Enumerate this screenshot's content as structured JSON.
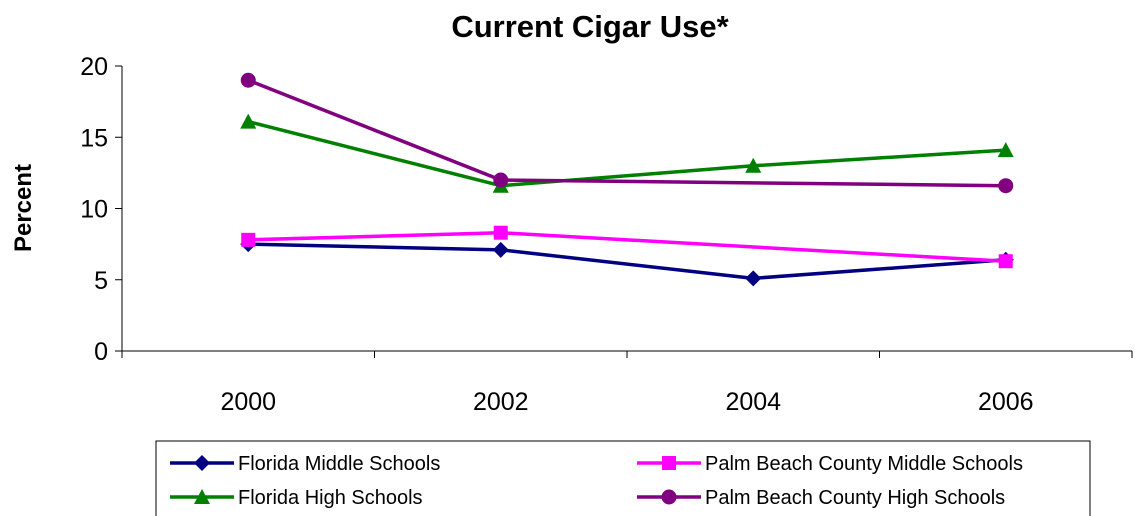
{
  "chart_data": {
    "type": "line",
    "title": "Current Cigar Use*",
    "xlabel": "",
    "ylabel": "Percent",
    "categories": [
      "2000",
      "2002",
      "2004",
      "2006"
    ],
    "ylim": [
      0,
      20
    ],
    "yticks": [
      0,
      5,
      10,
      15,
      20
    ],
    "grid": false,
    "legend_position": "bottom",
    "series": [
      {
        "name": "Florida Middle Schools",
        "color": "#000080",
        "marker": "diamond",
        "values": [
          7.5,
          7.1,
          5.1,
          6.4
        ]
      },
      {
        "name": "Palm Beach County Middle Schools",
        "color": "#ff00ff",
        "marker": "square",
        "values": [
          7.8,
          8.3,
          null,
          6.3
        ]
      },
      {
        "name": "Florida High Schools",
        "color": "#008000",
        "marker": "triangle",
        "values": [
          16.1,
          11.6,
          13.0,
          14.1
        ]
      },
      {
        "name": "Palm Beach County High Schools",
        "color": "#800080",
        "marker": "circle",
        "values": [
          19.0,
          12.0,
          null,
          11.6
        ]
      }
    ]
  }
}
